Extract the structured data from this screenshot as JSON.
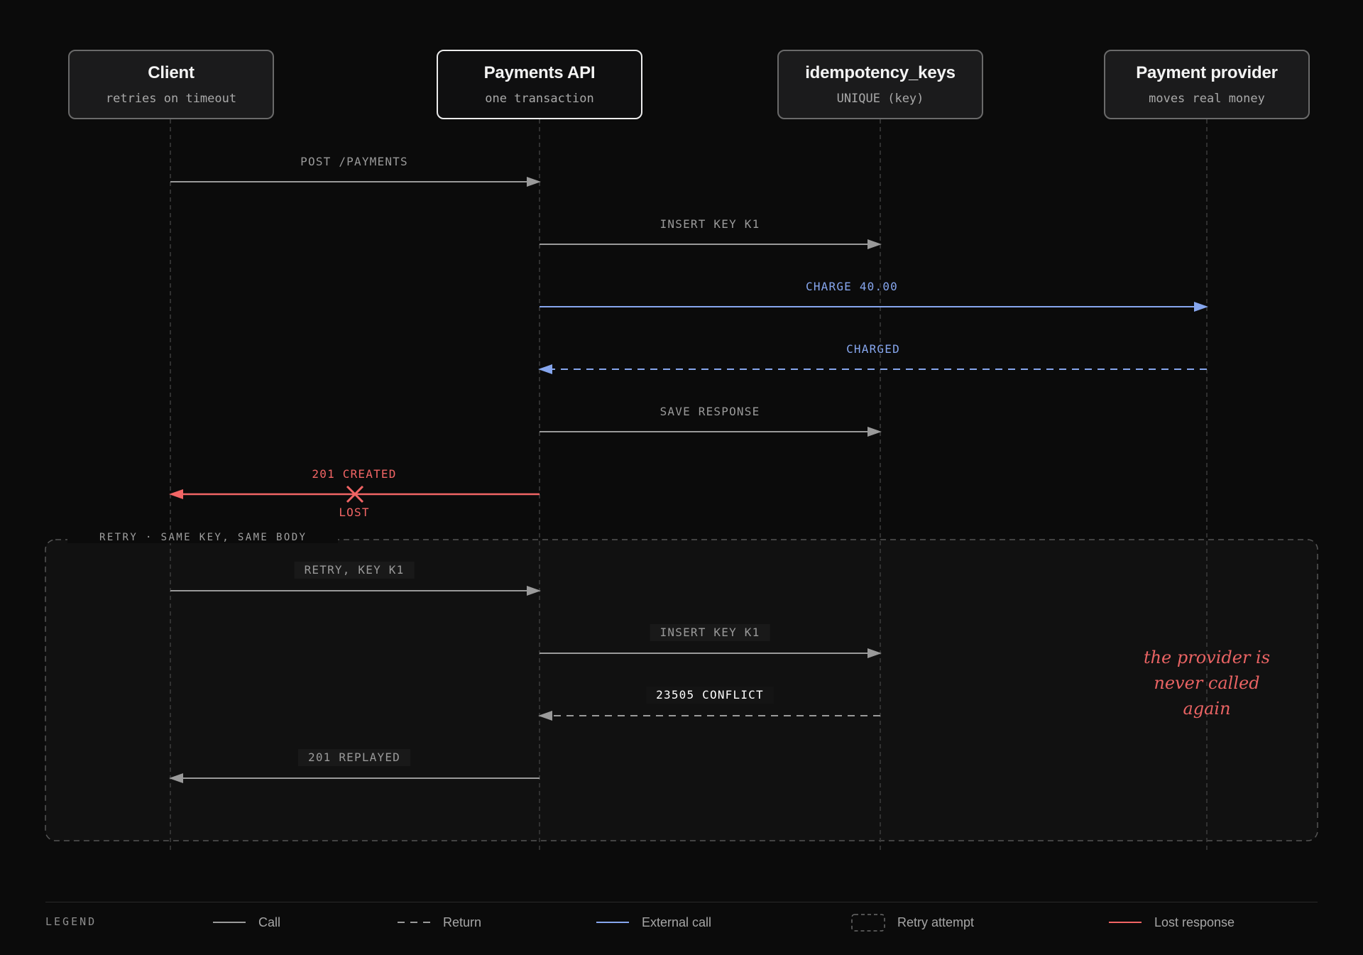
{
  "participants": [
    {
      "name": "Client",
      "subtitle": "retries on timeout"
    },
    {
      "name": "Payments API",
      "subtitle": "one transaction"
    },
    {
      "name": "idempotency_keys",
      "subtitle": "UNIQUE (key)"
    },
    {
      "name": "Payment provider",
      "subtitle": "moves real money"
    }
  ],
  "messages": [
    {
      "label": "POST /PAYMENTS",
      "from": 0,
      "to": 1,
      "kind": "call"
    },
    {
      "label": "INSERT KEY K1",
      "from": 1,
      "to": 2,
      "kind": "call"
    },
    {
      "label": "CHARGE 40.00",
      "from": 1,
      "to": 3,
      "kind": "external"
    },
    {
      "label": "CHARGED",
      "from": 3,
      "to": 1,
      "kind": "external-return"
    },
    {
      "label": "SAVE RESPONSE",
      "from": 1,
      "to": 2,
      "kind": "call"
    },
    {
      "label": "201 CREATED",
      "from": 1,
      "to": 0,
      "kind": "lost",
      "marker_label": "LOST"
    },
    {
      "label": "RETRY, KEY K1",
      "from": 0,
      "to": 1,
      "kind": "call"
    },
    {
      "label": "INSERT KEY K1",
      "from": 1,
      "to": 2,
      "kind": "call"
    },
    {
      "label": "23505 CONFLICT",
      "from": 2,
      "to": 1,
      "kind": "return"
    },
    {
      "label": "201 REPLAYED",
      "from": 1,
      "to": 0,
      "kind": "call"
    }
  ],
  "retry_frame": {
    "label": "RETRY · SAME KEY, SAME BODY"
  },
  "note": "the provider is never called again",
  "legend": {
    "title": "LEGEND",
    "items": [
      {
        "label": "Call",
        "kind": "call"
      },
      {
        "label": "Return",
        "kind": "return"
      },
      {
        "label": "External call",
        "kind": "external"
      },
      {
        "label": "Retry attempt",
        "kind": "frame"
      },
      {
        "label": "Lost response",
        "kind": "lost"
      }
    ]
  },
  "colors": {
    "background": "#0b0b0b",
    "call": "#9a9a9a",
    "external": "#86a6ee",
    "lost": "#f26565",
    "lifeline": "#3c3c3c",
    "frame": "#555555"
  }
}
